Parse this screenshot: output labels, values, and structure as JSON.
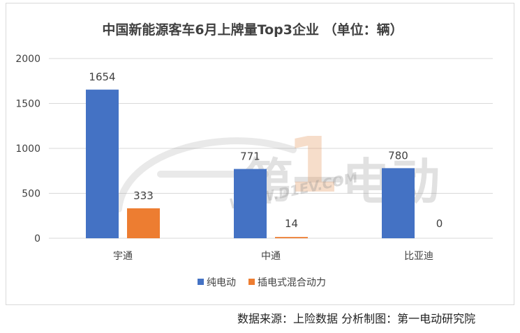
{
  "chart_data": {
    "type": "bar",
    "title": "中国新能源客车6月上牌量Top3企业 （单位：辆）",
    "categories": [
      "宇通",
      "中通",
      "比亚迪"
    ],
    "series": [
      {
        "name": "纯电动",
        "values": [
          1654,
          771,
          780
        ],
        "color": "#4472c4"
      },
      {
        "name": "插电式混合动力",
        "values": [
          333,
          14,
          0
        ],
        "color": "#ed7d31"
      }
    ],
    "ylim": [
      0,
      2000
    ],
    "yticks": [
      0,
      500,
      1000,
      1500,
      2000
    ],
    "grid": true,
    "legend": "bottom"
  },
  "watermark": {
    "text": "第一电动",
    "number": "1",
    "url": "WWW.D1EV.COM"
  },
  "source_note": "数据来源：上险数据 分析制图：第一电动研究院"
}
